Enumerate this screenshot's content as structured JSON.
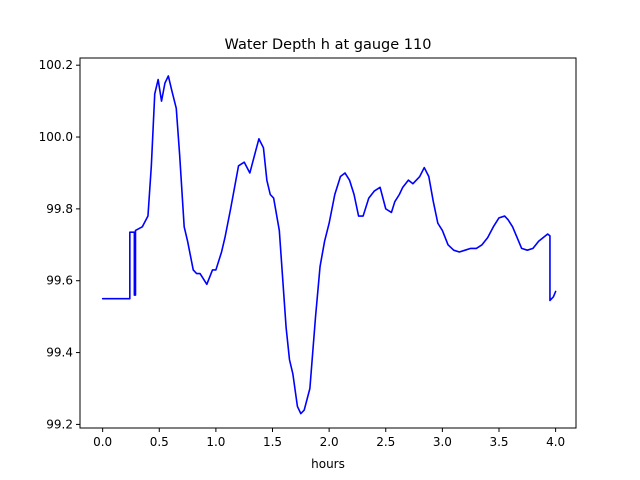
{
  "chart_data": {
    "type": "line",
    "title": "Water Depth h at gauge 110",
    "xlabel": "hours",
    "ylabel": "",
    "xlim": [
      -0.2,
      4.18
    ],
    "ylim": [
      99.19,
      100.22
    ],
    "xticks": [
      0.0,
      0.5,
      1.0,
      1.5,
      2.0,
      2.5,
      3.0,
      3.5,
      4.0
    ],
    "xtick_labels": [
      "0.0",
      "0.5",
      "1.0",
      "1.5",
      "2.0",
      "2.5",
      "3.0",
      "3.5",
      "4.0"
    ],
    "yticks": [
      99.2,
      99.4,
      99.6,
      99.8,
      100.0,
      100.2
    ],
    "ytick_labels": [
      "99.2",
      "99.4",
      "99.6",
      "99.8",
      "100.0",
      "100.2"
    ],
    "grid": false,
    "series": [
      {
        "color": "#0000ff",
        "x": [
          0.0,
          0.24,
          0.24,
          0.27,
          0.28,
          0.28,
          0.29,
          0.29,
          0.35,
          0.4,
          0.43,
          0.46,
          0.49,
          0.52,
          0.55,
          0.58,
          0.61,
          0.65,
          0.68,
          0.72,
          0.75,
          0.8,
          0.83,
          0.86,
          0.92,
          0.97,
          1.0,
          1.05,
          1.08,
          1.13,
          1.2,
          1.25,
          1.3,
          1.35,
          1.38,
          1.42,
          1.45,
          1.48,
          1.51,
          1.56,
          1.62,
          1.65,
          1.68,
          1.72,
          1.75,
          1.78,
          1.83,
          1.88,
          1.92,
          1.96,
          2.0,
          2.05,
          2.1,
          2.14,
          2.18,
          2.22,
          2.26,
          2.3,
          2.35,
          2.4,
          2.45,
          2.5,
          2.55,
          2.58,
          2.62,
          2.65,
          2.7,
          2.74,
          2.8,
          2.84,
          2.88,
          2.92,
          2.96,
          3.0,
          3.05,
          3.1,
          3.15,
          3.2,
          3.25,
          3.3,
          3.35,
          3.4,
          3.45,
          3.5,
          3.55,
          3.58,
          3.62,
          3.66,
          3.7,
          3.75,
          3.8,
          3.85,
          3.89,
          3.93,
          3.95,
          3.95,
          3.98,
          4.0
        ],
        "y": [
          99.55,
          99.55,
          99.735,
          99.735,
          99.735,
          99.56,
          99.56,
          99.74,
          99.75,
          99.78,
          99.92,
          100.12,
          100.16,
          100.1,
          100.15,
          100.17,
          100.13,
          100.08,
          99.95,
          99.75,
          99.71,
          99.63,
          99.62,
          99.62,
          99.59,
          99.63,
          99.63,
          99.68,
          99.72,
          99.8,
          99.92,
          99.93,
          99.9,
          99.96,
          99.995,
          99.97,
          99.88,
          99.84,
          99.83,
          99.74,
          99.47,
          99.38,
          99.34,
          99.25,
          99.23,
          99.24,
          99.3,
          99.5,
          99.64,
          99.71,
          99.76,
          99.84,
          99.89,
          99.9,
          99.88,
          99.84,
          99.78,
          99.78,
          99.83,
          99.85,
          99.86,
          99.8,
          99.79,
          99.82,
          99.84,
          99.86,
          99.88,
          99.87,
          99.89,
          99.915,
          99.89,
          99.82,
          99.76,
          99.74,
          99.7,
          99.685,
          99.68,
          99.685,
          99.69,
          99.69,
          99.7,
          99.72,
          99.75,
          99.775,
          99.78,
          99.77,
          99.75,
          99.72,
          99.69,
          99.685,
          99.69,
          99.71,
          99.72,
          99.73,
          99.725,
          99.545,
          99.555,
          99.57
        ]
      }
    ]
  }
}
